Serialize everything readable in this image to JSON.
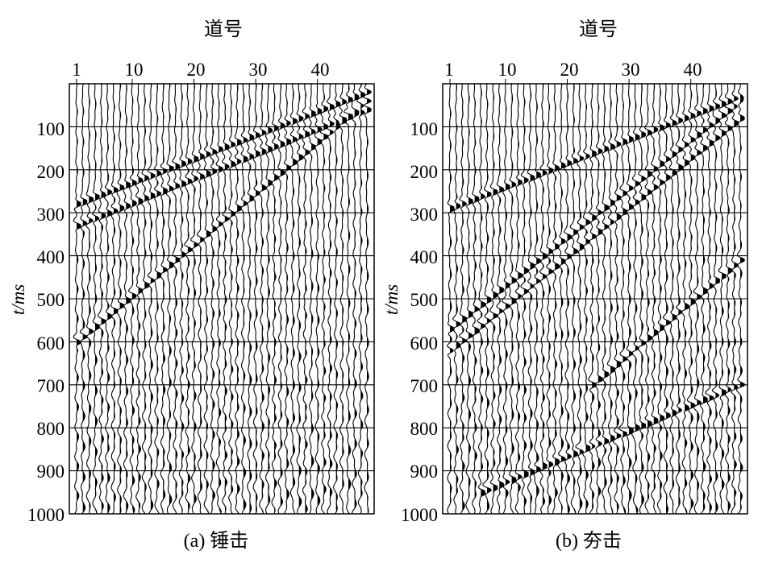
{
  "figure": {
    "panels": [
      {
        "id": "a",
        "xlabel": "道号",
        "ylabel": "t/ms",
        "caption": "(a) 锤击",
        "x_ticks": [
          "1",
          "10",
          "20",
          "30",
          "40"
        ],
        "y_ticks": [
          "100",
          "200",
          "300",
          "400",
          "500",
          "600",
          "700",
          "800",
          "900",
          "1000"
        ]
      },
      {
        "id": "b",
        "xlabel": "道号",
        "ylabel": "t/ms",
        "caption": "(b) 夯击",
        "x_ticks": [
          "1",
          "10",
          "20",
          "30",
          "40"
        ],
        "y_ticks": [
          "100",
          "200",
          "300",
          "400",
          "500",
          "600",
          "700",
          "800",
          "900",
          "1000"
        ]
      }
    ]
  },
  "chart_data": [
    {
      "type": "seismic-wiggle",
      "caption": "(a) 锤击",
      "xlabel": "道号",
      "ylabel": "t/ms",
      "traces": 48,
      "xlim": [
        1,
        48
      ],
      "ylim": [
        0,
        1000
      ],
      "x_tick_values": [
        1,
        10,
        20,
        30,
        40
      ],
      "y_tick_values": [
        100,
        200,
        300,
        400,
        500,
        600,
        700,
        800,
        900,
        1000
      ],
      "grid": true,
      "linear_events": [
        {
          "trace_start": 1,
          "time_start_ms": 280,
          "trace_end": 48,
          "time_end_ms": 20
        },
        {
          "trace_start": 1,
          "time_start_ms": 330,
          "trace_end": 48,
          "time_end_ms": 60
        },
        {
          "trace_start": 1,
          "time_start_ms": 600,
          "trace_end": 48,
          "time_end_ms": 40
        }
      ]
    },
    {
      "type": "seismic-wiggle",
      "caption": "(b) 夯击",
      "xlabel": "道号",
      "ylabel": "t/ms",
      "traces": 48,
      "xlim": [
        1,
        48
      ],
      "ylim": [
        0,
        1000
      ],
      "x_tick_values": [
        1,
        10,
        20,
        30,
        40
      ],
      "y_tick_values": [
        100,
        200,
        300,
        400,
        500,
        600,
        700,
        800,
        900,
        1000
      ],
      "grid": true,
      "linear_events": [
        {
          "trace_start": 1,
          "time_start_ms": 290,
          "trace_end": 48,
          "time_end_ms": 30
        },
        {
          "trace_start": 1,
          "time_start_ms": 570,
          "trace_end": 48,
          "time_end_ms": 40
        },
        {
          "trace_start": 1,
          "time_start_ms": 620,
          "trace_end": 48,
          "time_end_ms": 80
        },
        {
          "trace_start": 24,
          "time_start_ms": 700,
          "trace_end": 48,
          "time_end_ms": 410
        },
        {
          "trace_start": 6,
          "time_start_ms": 950,
          "trace_end": 48,
          "time_end_ms": 700
        }
      ]
    }
  ]
}
